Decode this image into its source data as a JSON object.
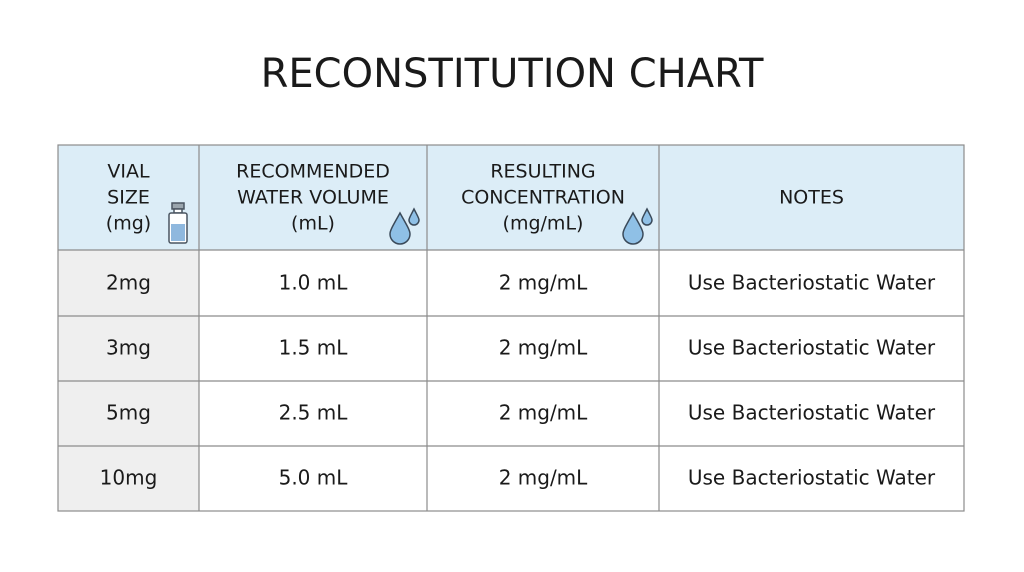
{
  "header": {
    "title": "RECONSTITUTION CHART"
  },
  "table": {
    "headers": [
      [
        "VIAL",
        "SIZE",
        "(mg)"
      ],
      [
        "RECOMMENDED",
        "WATER VOLUME",
        "(mL)"
      ],
      [
        "RESULTING",
        "CONCENTRATION",
        "(mg/mL)"
      ],
      [
        "NOTES"
      ]
    ],
    "rows": [
      [
        "2mg",
        "1.0 mL",
        "2 mg/mL",
        "Use Bacteriostatic Water"
      ],
      [
        "3mg",
        "1.5 mL",
        "2 mg/mL",
        "Use Bacteriostatic Water"
      ],
      [
        "5mg",
        "2.5 mL",
        "2 mg/mL",
        "Use Bacteriostatic Water"
      ],
      [
        "10mg",
        "5.0 mL",
        "2 mg/mL",
        "Use Bacteriostatic Water"
      ]
    ]
  }
}
